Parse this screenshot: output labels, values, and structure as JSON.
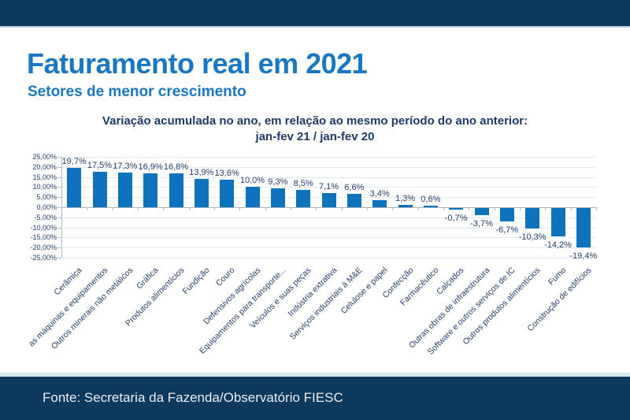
{
  "slide": {
    "title": "Faturamento real em 2021",
    "subtitle": "Setores de menor crescimento",
    "source": "Fonte: Secretaria da Fazenda/Observatório FIESC"
  },
  "chart_data": {
    "type": "bar",
    "title": "Variação acumulada no ano, em relação ao mesmo período do ano anterior:",
    "subtitle": "jan-fev 21 / jan-fev 20",
    "categories": [
      "Cerâmica",
      "as máquinas e equipamentos",
      "Outros minerais não metálicos",
      "Gráfica",
      "Produtos alimentícios",
      "Fundição",
      "Couro",
      "Defensivos agrícolas",
      "Equipamentos para transporte...",
      "Veículos e suas peças",
      "Indústria extrativa",
      "Serviços industriais à M&E",
      "Celulose e papel",
      "Confecção",
      "Farmacêutico",
      "Calçados",
      "Outras obras de infraestrutura",
      "Software e outros serviços de IC",
      "Outros produtos alimentícios",
      "Fumo",
      "Construção de edifícios"
    ],
    "values": [
      19.7,
      17.5,
      17.3,
      16.9,
      16.8,
      13.9,
      13.6,
      10.0,
      9.3,
      8.5,
      7.1,
      6.6,
      3.4,
      1.3,
      0.6,
      -0.7,
      -3.7,
      -6.7,
      -10.3,
      -14.2,
      -19.4
    ],
    "value_labels": [
      "19,7%",
      "17,5%",
      "17,3%",
      "16,9%",
      "16,8%",
      "13,9%",
      "13,6%",
      "10,0%",
      "9,3%",
      "8,5%",
      "7,1%",
      "6,6%",
      "3,4%",
      "1,3%",
      "0,6%",
      "-0,7%",
      "-3,7%",
      "-6,7%",
      "-10,3%",
      "-14,2%",
      "-19,4%"
    ],
    "xlabel": "",
    "ylabel": "",
    "ylim": [
      -25,
      25
    ],
    "ytick_step": 5,
    "ytick_labels": [
      "25,00%",
      "20,00%",
      "15,00%",
      "10,00%",
      "5,00%",
      "0,00%",
      "-5,00%",
      "-10,00%",
      "-15,00%",
      "-20,00%",
      "-25,00%"
    ],
    "grid": true,
    "legend": false,
    "bar_color": "#0f72bd"
  },
  "colors": {
    "band_navy": "#0d395e",
    "title_blue": "#1a78c2",
    "chart_title_navy": "#1e3a68",
    "bar_blue": "#0f72bd",
    "grid_line": "#e3e9f0",
    "axis_gray": "#b6bdc4",
    "zero_line": "#a9b1b8",
    "data_label_navy": "#27406e",
    "footer_divider_blue": "#d7e9f5",
    "footer_text": "#e9edf1"
  }
}
